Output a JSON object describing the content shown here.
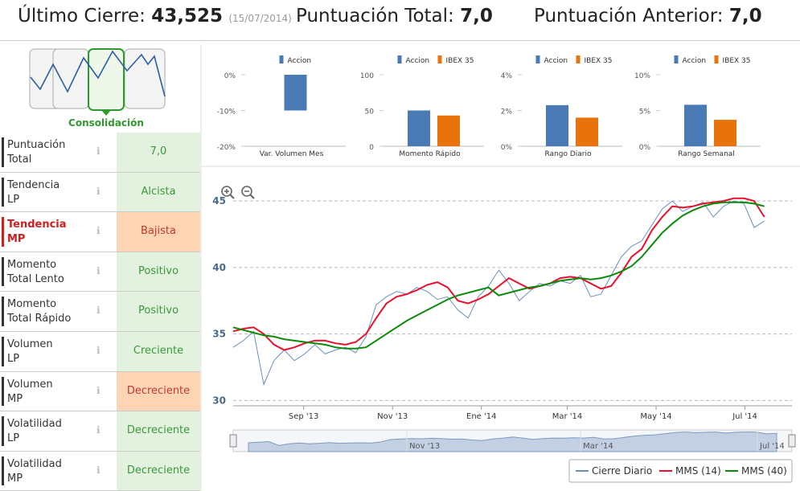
{
  "header": {
    "last_close_label": "Último Cierre:",
    "last_close": "43,525",
    "date": "(15/07/2014)",
    "total_label": "Puntuación Total:",
    "total": "7,0",
    "previous_label": "Puntuación Anterior:",
    "previous": "7,0"
  },
  "pattern": {
    "label": "Consolidación"
  },
  "indicators": [
    {
      "label": "Puntuación Total",
      "value": "7,0",
      "color": "#3a9a3a",
      "background": "#e3f1df",
      "label_color": "#333333"
    },
    {
      "label": "Tendencia LP",
      "value": "Alcista",
      "color": "#3a9a3a",
      "background": "#e3f1df",
      "label_color": "#333333"
    },
    {
      "label": "Tendencia MP",
      "value": "Bajista",
      "color": "#c0392b",
      "background": "#fdd5b5",
      "label_color": "#cc1f1f"
    },
    {
      "label": "Momento Total Lento",
      "value": "Positivo",
      "color": "#3a9a3a",
      "background": "#e3f1df",
      "label_color": "#333333"
    },
    {
      "label": "Momento Total Rápido",
      "value": "Positivo",
      "color": "#3a9a3a",
      "background": "#e3f1df",
      "label_color": "#333333"
    },
    {
      "label": "Volumen LP",
      "value": "Creciente",
      "color": "#3a9a3a",
      "background": "#e3f1df",
      "label_color": "#333333"
    },
    {
      "label": "Volumen MP",
      "value": "Decreciente",
      "color": "#c0392b",
      "background": "#fdd5b5",
      "label_color": "#333333"
    },
    {
      "label": "Volatilidad LP",
      "value": "Decreciente",
      "color": "#3a9a3a",
      "background": "#e3f1df",
      "label_color": "#333333"
    },
    {
      "label": "Volatilidad MP",
      "value": "Decreciente",
      "color": "#3a9a3a",
      "background": "#e3f1df",
      "label_color": "#333333"
    }
  ],
  "chart_data": [
    {
      "type": "bar",
      "xlabel": "Var. Volumen Mes",
      "ylim": [
        -20,
        0
      ],
      "yticks": [
        {
          "value": 0,
          "label": "0%"
        },
        {
          "value": -10,
          "label": "-10%"
        },
        {
          "value": -20,
          "label": "-20%"
        }
      ],
      "series": [
        {
          "name": "Accion",
          "color": "#4a7ab5",
          "values": [
            -10
          ]
        }
      ]
    },
    {
      "type": "bar",
      "xlabel": "Momento Rápido",
      "ylim": [
        0,
        100
      ],
      "yticks": [
        100,
        50,
        0
      ],
      "series": [
        {
          "name": "Accion",
          "color": "#4a7ab5",
          "values": [
            50
          ]
        },
        {
          "name": "IBEX 35",
          "color": "#e8720c",
          "values": [
            43
          ]
        }
      ]
    },
    {
      "type": "bar",
      "xlabel": "Rango Diario",
      "ylim": [
        0,
        4
      ],
      "yticks": [
        {
          "value": 4,
          "label": "4%"
        },
        {
          "value": 2,
          "label": "2%"
        },
        {
          "value": 0,
          "label": "0%"
        }
      ],
      "series": [
        {
          "name": "Accion",
          "color": "#4a7ab5",
          "values": [
            2.3
          ]
        },
        {
          "name": "IBEX 35",
          "color": "#e8720c",
          "values": [
            1.6
          ]
        }
      ]
    },
    {
      "type": "bar",
      "xlabel": "Rango Semanal",
      "ylim": [
        0,
        10
      ],
      "yticks": [
        {
          "value": 10,
          "label": "10%"
        },
        {
          "value": 5,
          "label": "5%"
        },
        {
          "value": 0,
          "label": "0%"
        }
      ],
      "series": [
        {
          "name": "Accion",
          "color": "#4a7ab5",
          "values": [
            5.8
          ]
        },
        {
          "name": "IBEX 35",
          "color": "#e8720c",
          "values": [
            3.7
          ]
        }
      ]
    },
    {
      "type": "line",
      "xlim": [
        0,
        54.7
      ],
      "ylim": [
        29.6,
        47
      ],
      "grid": true,
      "legend": "bottom-right",
      "yticks": [
        30,
        35,
        40,
        45
      ],
      "xticks": [
        {
          "value": 6.9,
          "label": "Sep '13"
        },
        {
          "value": 15.6,
          "label": "Nov '13"
        },
        {
          "value": 24.3,
          "label": "Ene '14"
        },
        {
          "value": 32.7,
          "label": "Mar '14"
        },
        {
          "value": 41.4,
          "label": "May '14"
        },
        {
          "value": 50.1,
          "label": "Jul '14"
        }
      ],
      "series": [
        {
          "name": "Cierre Diario",
          "color": "#6b8fbf",
          "values": [
            34.0,
            34.5,
            35.2,
            31.2,
            33.0,
            33.8,
            33.0,
            33.5,
            34.2,
            33.5,
            33.8,
            34.0,
            33.6,
            34.8,
            37.2,
            37.8,
            38.2,
            38.0,
            38.5,
            38.2,
            37.6,
            37.8,
            36.8,
            36.2,
            37.8,
            38.6,
            39.8,
            38.8,
            37.5,
            38.2,
            38.8,
            38.6,
            39.0,
            38.8,
            39.4,
            37.8,
            38.0,
            39.4,
            40.8,
            41.6,
            42.0,
            43.2,
            44.4,
            45.0,
            44.2,
            44.6,
            44.9,
            43.8,
            44.6,
            45.0,
            44.8,
            43.0,
            43.5
          ]
        },
        {
          "name": "MMS (14)",
          "color": "#e8112d",
          "values": [
            35.2,
            35.4,
            35.5,
            35.0,
            34.2,
            33.8,
            34.0,
            34.3,
            34.5,
            34.5,
            34.3,
            34.2,
            34.4,
            35.0,
            36.2,
            37.3,
            37.8,
            38.0,
            38.3,
            38.7,
            38.9,
            38.5,
            37.5,
            37.3,
            37.6,
            38.0,
            38.6,
            39.2,
            38.8,
            38.4,
            38.6,
            38.8,
            39.2,
            39.3,
            39.2,
            38.8,
            38.4,
            38.6,
            39.6,
            40.8,
            41.4,
            42.8,
            43.8,
            44.6,
            44.5,
            44.6,
            44.8,
            44.9,
            45.0,
            45.2,
            45.2,
            45.0,
            43.8
          ]
        },
        {
          "name": "MMS (40)",
          "color": "#0a8a0a",
          "values": [
            35.5,
            35.3,
            35.1,
            34.9,
            34.8,
            34.6,
            34.5,
            34.4,
            34.3,
            34.2,
            34.0,
            33.9,
            33.9,
            34.0,
            34.5,
            35.0,
            35.5,
            36.0,
            36.4,
            36.8,
            37.2,
            37.6,
            37.9,
            38.1,
            38.3,
            38.5,
            37.9,
            38.1,
            38.3,
            38.5,
            38.6,
            38.8,
            39.0,
            39.1,
            39.2,
            39.1,
            39.2,
            39.4,
            39.7,
            40.1,
            40.8,
            41.7,
            42.6,
            43.3,
            43.9,
            44.3,
            44.6,
            44.8,
            44.9,
            44.9,
            44.9,
            44.8,
            44.6
          ]
        }
      ],
      "navigator": {
        "xlim": [
          -1.5,
          53.5
        ],
        "ylim": [
          25,
          47
        ],
        "xticks": [
          {
            "value": 15.6,
            "label": "Nov '13"
          },
          {
            "value": 32.7,
            "label": "Mar '14"
          },
          {
            "value": 50.1,
            "label": "Jul '14"
          }
        ]
      }
    }
  ]
}
